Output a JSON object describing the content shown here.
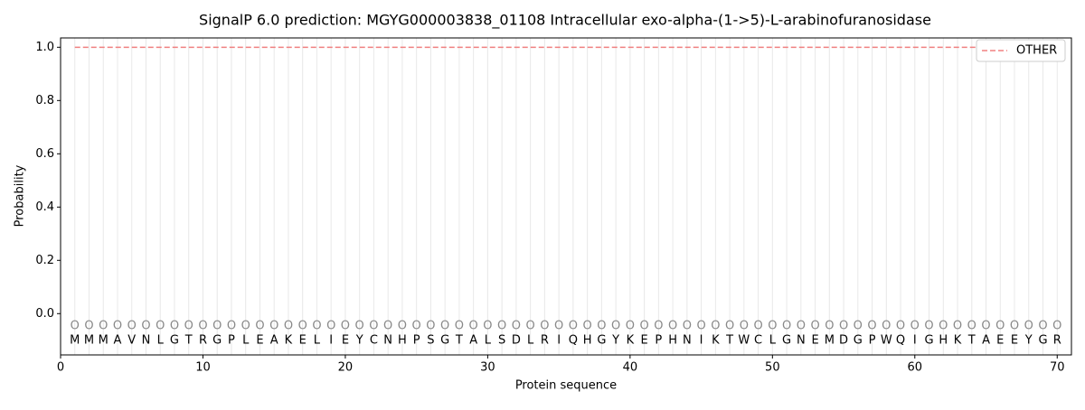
{
  "chart_data": {
    "type": "line",
    "title": "SignalP 6.0 prediction: MGYG000003838_01108 Intracellular exo-alpha-(1->5)-L-arabinofuranosidase",
    "xlabel": "Protein sequence",
    "ylabel": "Probability",
    "x": [
      1,
      2,
      3,
      4,
      5,
      6,
      7,
      8,
      9,
      10,
      11,
      12,
      13,
      14,
      15,
      16,
      17,
      18,
      19,
      20,
      21,
      22,
      23,
      24,
      25,
      26,
      27,
      28,
      29,
      30,
      31,
      32,
      33,
      34,
      35,
      36,
      37,
      38,
      39,
      40,
      41,
      42,
      43,
      44,
      45,
      46,
      47,
      48,
      49,
      50,
      51,
      52,
      53,
      54,
      55,
      56,
      57,
      58,
      59,
      60,
      61,
      62,
      63,
      64,
      65,
      66,
      67,
      68,
      69,
      70
    ],
    "residues": [
      "M",
      "M",
      "M",
      "A",
      "V",
      "N",
      "L",
      "G",
      "T",
      "R",
      "G",
      "P",
      "L",
      "E",
      "A",
      "K",
      "E",
      "L",
      "I",
      "E",
      "Y",
      "C",
      "N",
      "H",
      "P",
      "S",
      "G",
      "T",
      "A",
      "L",
      "S",
      "D",
      "L",
      "R",
      "I",
      "Q",
      "H",
      "G",
      "Y",
      "K",
      "E",
      "P",
      "H",
      "N",
      "I",
      "K",
      "T",
      "W",
      "C",
      "L",
      "G",
      "N",
      "E",
      "M",
      "D",
      "G",
      "P",
      "W",
      "Q",
      "I",
      "G",
      "H",
      "K",
      "T",
      "A",
      "E",
      "E",
      "Y",
      "G",
      "R"
    ],
    "predictions": [
      "O",
      "O",
      "O",
      "O",
      "O",
      "O",
      "O",
      "O",
      "O",
      "O",
      "O",
      "O",
      "O",
      "O",
      "O",
      "O",
      "O",
      "O",
      "O",
      "O",
      "O",
      "O",
      "O",
      "O",
      "O",
      "O",
      "O",
      "O",
      "O",
      "O",
      "O",
      "O",
      "O",
      "O",
      "O",
      "O",
      "O",
      "O",
      "O",
      "O",
      "O",
      "O",
      "O",
      "O",
      "O",
      "O",
      "O",
      "O",
      "O",
      "O",
      "O",
      "O",
      "O",
      "O",
      "O",
      "O",
      "O",
      "O",
      "O",
      "O",
      "O",
      "O",
      "O",
      "O",
      "O",
      "O",
      "O",
      "O",
      "O",
      "O"
    ],
    "series": [
      {
        "name": "OTHER",
        "color": "#f08080",
        "dash": true,
        "values": [
          1,
          1,
          1,
          1,
          1,
          1,
          1,
          1,
          1,
          1,
          1,
          1,
          1,
          1,
          1,
          1,
          1,
          1,
          1,
          1,
          1,
          1,
          1,
          1,
          1,
          1,
          1,
          1,
          1,
          1,
          1,
          1,
          1,
          1,
          1,
          1,
          1,
          1,
          1,
          1,
          1,
          1,
          1,
          1,
          1,
          1,
          1,
          1,
          1,
          1,
          1,
          1,
          1,
          1,
          1,
          1,
          1,
          1,
          1,
          1,
          1,
          1,
          1,
          1,
          1,
          1,
          1,
          1,
          1,
          1
        ]
      }
    ],
    "xlim": [
      0,
      71
    ],
    "ylim": [
      -0.155,
      1.035
    ],
    "xticks": [
      0,
      10,
      20,
      30,
      40,
      50,
      60,
      70
    ],
    "yticks": [
      {
        "value": 0,
        "label": "0.0"
      },
      {
        "value": 0.2,
        "label": "0.2"
      },
      {
        "value": 0.4,
        "label": "0.4"
      },
      {
        "value": 0.6,
        "label": "0.6"
      },
      {
        "value": 0.8,
        "label": "0.8"
      },
      {
        "value": 1,
        "label": "1.0"
      }
    ],
    "legend": "upper right"
  }
}
